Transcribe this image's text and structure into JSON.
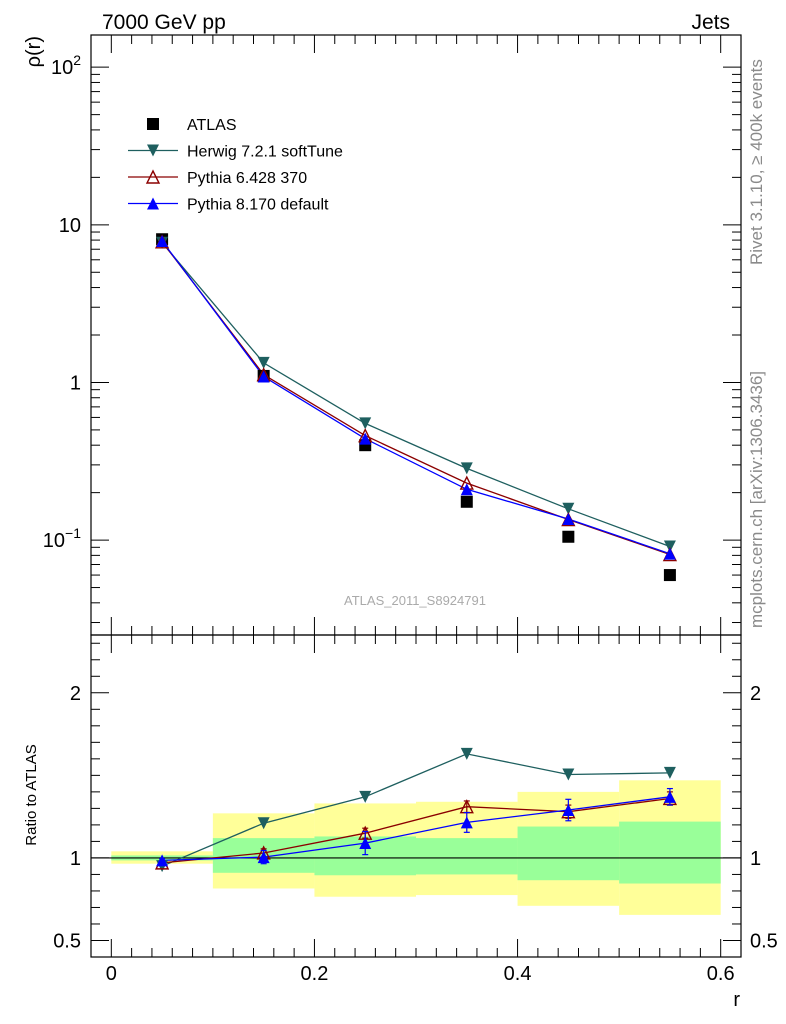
{
  "header": {
    "left": "7000 GeV pp",
    "right": "Jets"
  },
  "side_labels": {
    "rivet": "Rivet 3.1.10, ≥ 400k events",
    "mcplots": "mcplots.cern.ch [arXiv:1306.3436]"
  },
  "analysis_id": "ATLAS_2011_S8924791",
  "colors": {
    "atlas": "#000000",
    "herwig": "#1e5f5f",
    "pythia6": "#8b0000",
    "pythia8": "#0000ff",
    "band_outer": "#ffff99",
    "band_inner": "#99ff99"
  },
  "chart_data": [
    {
      "type": "line",
      "ylabel": "ρ(r)",
      "xlabel": "",
      "yscale": "log",
      "ylim": [
        0.025,
        160
      ],
      "xlim": [
        -0.02,
        0.62
      ],
      "yticks": [
        {
          "value": 100,
          "base": "10",
          "exp": "2"
        },
        {
          "value": 10,
          "base": "10",
          "exp": ""
        },
        {
          "value": 1,
          "base": "1",
          "exp": ""
        },
        {
          "value": 0.1,
          "base": "10",
          "exp": "−1"
        }
      ],
      "x": [
        0.05,
        0.15,
        0.25,
        0.35,
        0.45,
        0.55
      ],
      "series": [
        {
          "name": "ATLAS",
          "marker": "square",
          "values": [
            8.1,
            1.1,
            0.4,
            0.175,
            0.105,
            0.06
          ]
        },
        {
          "name": "Herwig 7.2.1 softTune",
          "marker": "triangle-down",
          "values": [
            7.7,
            1.33,
            0.55,
            0.285,
            0.158,
            0.091
          ]
        },
        {
          "name": "Pythia 6.428 370",
          "marker": "triangle-up-open",
          "values": [
            7.8,
            1.12,
            0.46,
            0.23,
            0.135,
            0.081
          ]
        },
        {
          "name": "Pythia 8.170 default",
          "marker": "triangle-up",
          "values": [
            7.9,
            1.09,
            0.44,
            0.21,
            0.136,
            0.082
          ]
        }
      ],
      "legend_position": "top-left"
    },
    {
      "type": "line",
      "ylabel": "Ratio to ATLAS",
      "xlabel": "r",
      "ylim": [
        0.4,
        2.35
      ],
      "xlim": [
        -0.02,
        0.62
      ],
      "yticks": [
        0.5,
        1,
        2
      ],
      "xticks": [
        0,
        0.2,
        0.4,
        0.6
      ],
      "x": [
        0.05,
        0.15,
        0.25,
        0.35,
        0.45,
        0.55
      ],
      "bins": [
        [
          0.0,
          0.1
        ],
        [
          0.1,
          0.2
        ],
        [
          0.2,
          0.3
        ],
        [
          0.3,
          0.4
        ],
        [
          0.4,
          0.5
        ],
        [
          0.5,
          0.6
        ]
      ],
      "band_outer": [
        [
          0.965,
          1.04
        ],
        [
          0.815,
          1.27
        ],
        [
          0.765,
          1.33
        ],
        [
          0.775,
          1.34
        ],
        [
          0.71,
          1.4
        ],
        [
          0.655,
          1.47
        ]
      ],
      "band_inner": [
        [
          0.985,
          1.015
        ],
        [
          0.91,
          1.12
        ],
        [
          0.895,
          1.13
        ],
        [
          0.9,
          1.12
        ],
        [
          0.865,
          1.19
        ],
        [
          0.845,
          1.22
        ]
      ],
      "series": [
        {
          "name": "Herwig 7.2.1 softTune",
          "marker": "triangle-down",
          "values": [
            0.95,
            1.21,
            1.37,
            1.63,
            1.505,
            1.515
          ],
          "err": [
            0,
            0,
            0,
            0,
            0,
            0
          ]
        },
        {
          "name": "Pythia 6.428 370",
          "marker": "triangle-up-open",
          "values": [
            0.97,
            1.03,
            1.15,
            1.31,
            1.28,
            1.36
          ],
          "err": [
            0.01,
            0.025,
            0.03,
            0.035,
            0.04,
            0.04
          ]
        },
        {
          "name": "Pythia 8.170 default",
          "marker": "triangle-up",
          "values": [
            0.985,
            1.005,
            1.09,
            1.215,
            1.29,
            1.37
          ],
          "err": [
            0.01,
            0.04,
            0.07,
            0.06,
            0.065,
            0.05
          ]
        }
      ]
    }
  ]
}
